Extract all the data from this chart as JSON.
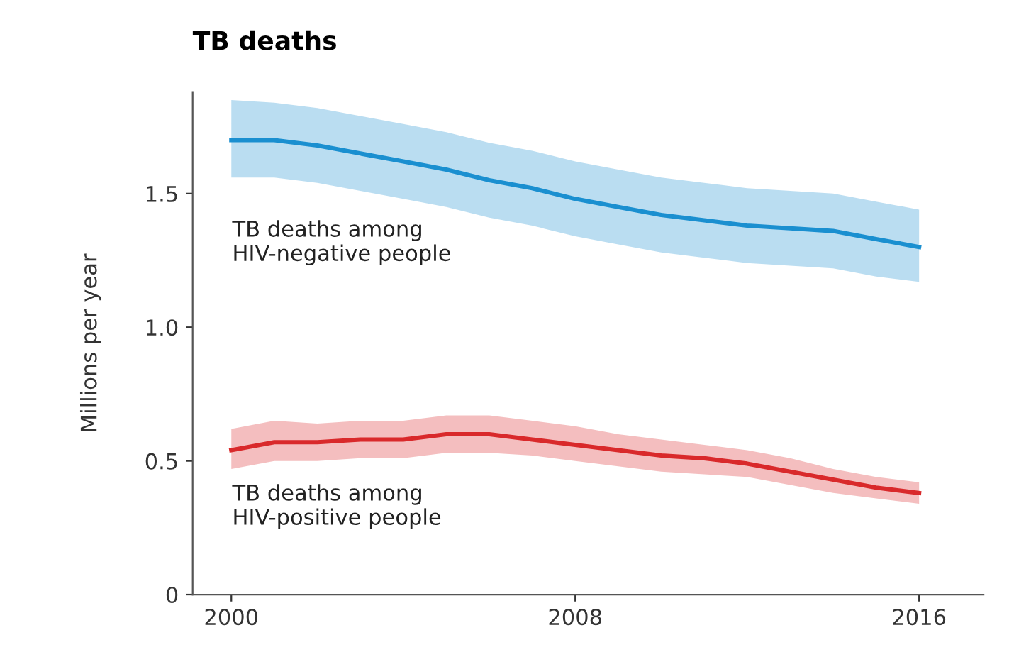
{
  "chart_data": {
    "type": "line",
    "title": "TB deaths",
    "ylabel": "Millions per year",
    "x": [
      2000,
      2001,
      2002,
      2003,
      2004,
      2005,
      2006,
      2007,
      2008,
      2009,
      2010,
      2011,
      2012,
      2013,
      2014,
      2015,
      2016
    ],
    "series": [
      {
        "color": "#1a8fd0",
        "values": [
          1.7,
          1.7,
          1.68,
          1.65,
          1.62,
          1.59,
          1.55,
          1.52,
          1.48,
          1.45,
          1.42,
          1.4,
          1.38,
          1.37,
          1.36,
          1.33,
          1.3
        ],
        "upper": [
          1.85,
          1.84,
          1.82,
          1.79,
          1.76,
          1.73,
          1.69,
          1.66,
          1.62,
          1.59,
          1.56,
          1.54,
          1.52,
          1.51,
          1.5,
          1.47,
          1.44
        ],
        "lower": [
          1.56,
          1.56,
          1.54,
          1.51,
          1.48,
          1.45,
          1.41,
          1.38,
          1.34,
          1.31,
          1.28,
          1.26,
          1.24,
          1.23,
          1.22,
          1.19,
          1.17
        ]
      },
      {
        "color": "#d9292b",
        "values": [
          0.54,
          0.57,
          0.57,
          0.58,
          0.58,
          0.6,
          0.6,
          0.58,
          0.56,
          0.54,
          0.52,
          0.51,
          0.49,
          0.46,
          0.43,
          0.4,
          0.38
        ],
        "upper": [
          0.62,
          0.65,
          0.64,
          0.65,
          0.65,
          0.67,
          0.67,
          0.65,
          0.63,
          0.6,
          0.58,
          0.56,
          0.54,
          0.51,
          0.47,
          0.44,
          0.42
        ],
        "lower": [
          0.47,
          0.5,
          0.5,
          0.51,
          0.51,
          0.53,
          0.53,
          0.52,
          0.5,
          0.48,
          0.46,
          0.45,
          0.44,
          0.41,
          0.38,
          0.36,
          0.34
        ]
      }
    ],
    "annotations": [
      "TB deaths among\nHIV-negative people",
      "TB deaths among\nHIV-positive people"
    ],
    "xlim": [
      1999.1,
      2017.5
    ],
    "ylim": [
      0,
      1.88
    ],
    "xticks": [
      2000,
      2008,
      2016
    ],
    "yticks": [
      0,
      {
        "value": 0.5,
        "label": "0.5"
      },
      {
        "value": 1,
        "label": "1.0"
      },
      {
        "value": 1.5,
        "label": "1.5"
      }
    ],
    "grid": false,
    "legend": false
  }
}
